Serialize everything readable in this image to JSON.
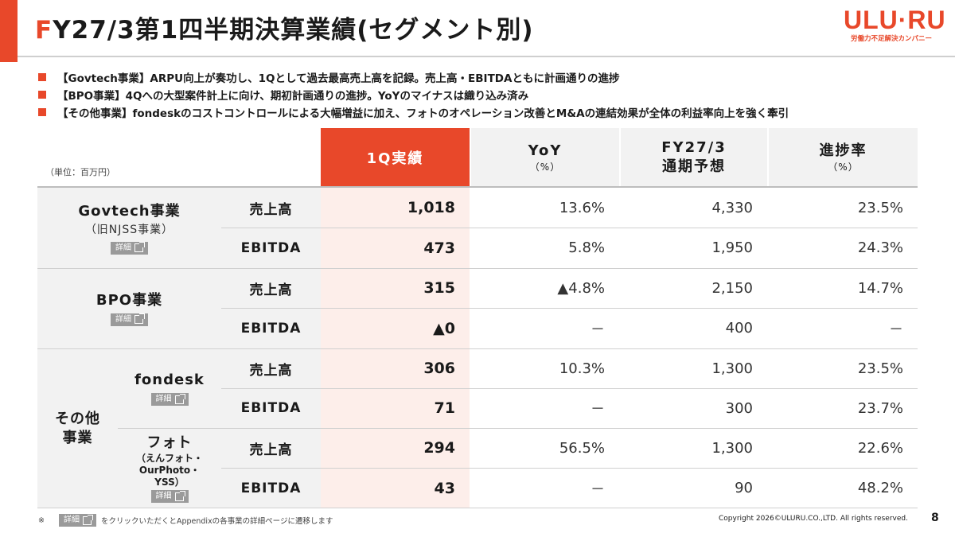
{
  "title": {
    "first": "F",
    "rest": "Y27/3第1四半期決算業績(セグメント別)"
  },
  "logo": {
    "text": "ULU·RU",
    "tagline": "労働力不足解決カンパニー"
  },
  "bullets": [
    "【Govtech事業】ARPU向上が奏功し、1Qとして過去最高売上高を記録。売上高・EBITDAともに計画通りの進捗",
    "【BPO事業】4Qへの大型案件計上に向け、期初計画通りの進捗。YoYのマイナスは織り込み済み",
    "【その他事業】fondeskのコストコントロールによる大幅増益に加え、フォトのオペレーション改善とM&Aの連結効果が全体の利益率向上を強く牽引"
  ],
  "unit": "（単位：百万円）",
  "headers": {
    "q1": "1Q実績",
    "yoy": "YoY",
    "yoy_sub": "（%）",
    "fy_line1": "FY27/3",
    "fy_line2": "通期予想",
    "progress": "進捗率",
    "progress_sub": "（%）"
  },
  "detail_label": "詳細",
  "segments": {
    "govtech": {
      "name": "Govtech事業",
      "note": "（旧NJSS事業）"
    },
    "bpo": {
      "name": "BPO事業"
    },
    "other": {
      "name_line1": "その他",
      "name_line2": "事業"
    },
    "fondesk": {
      "name": "fondesk"
    },
    "photo": {
      "name": "フォト",
      "note_line1": "（えんフォト・",
      "note_line2": "OurPhoto・",
      "note_line3": "YSS）"
    }
  },
  "rows": [
    {
      "metric": "売上高",
      "q1": "1,018",
      "yoy": "13.6%",
      "forecast": "4,330",
      "progress": "23.5%"
    },
    {
      "metric": "EBITDA",
      "q1": "473",
      "yoy": "5.8%",
      "forecast": "1,950",
      "progress": "24.3%"
    },
    {
      "metric": "売上高",
      "q1": "315",
      "yoy": "▲4.8%",
      "forecast": "2,150",
      "progress": "14.7%"
    },
    {
      "metric": "EBITDA",
      "q1": "▲0",
      "yoy": "－",
      "forecast": "400",
      "progress": "－"
    },
    {
      "metric": "売上高",
      "q1": "306",
      "yoy": "10.3%",
      "forecast": "1,300",
      "progress": "23.5%"
    },
    {
      "metric": "EBITDA",
      "q1": "71",
      "yoy": "－",
      "forecast": "300",
      "progress": "23.7%"
    },
    {
      "metric": "売上高",
      "q1": "294",
      "yoy": "56.5%",
      "forecast": "1,300",
      "progress": "22.6%"
    },
    {
      "metric": "EBITDA",
      "q1": "43",
      "yoy": "－",
      "forecast": "90",
      "progress": "48.2%"
    }
  ],
  "footnote": {
    "mark": "※",
    "text": "をクリックいただくとAppendixの各事業の詳細ページに遷移します"
  },
  "copyright": "Copyright 2026©ULURU.CO.,LTD. All rights reserved.",
  "page_number": "8",
  "colors": {
    "accent": "#e8482a",
    "header_gray": "#f2f2f2",
    "highlight": "#fdeeea"
  }
}
